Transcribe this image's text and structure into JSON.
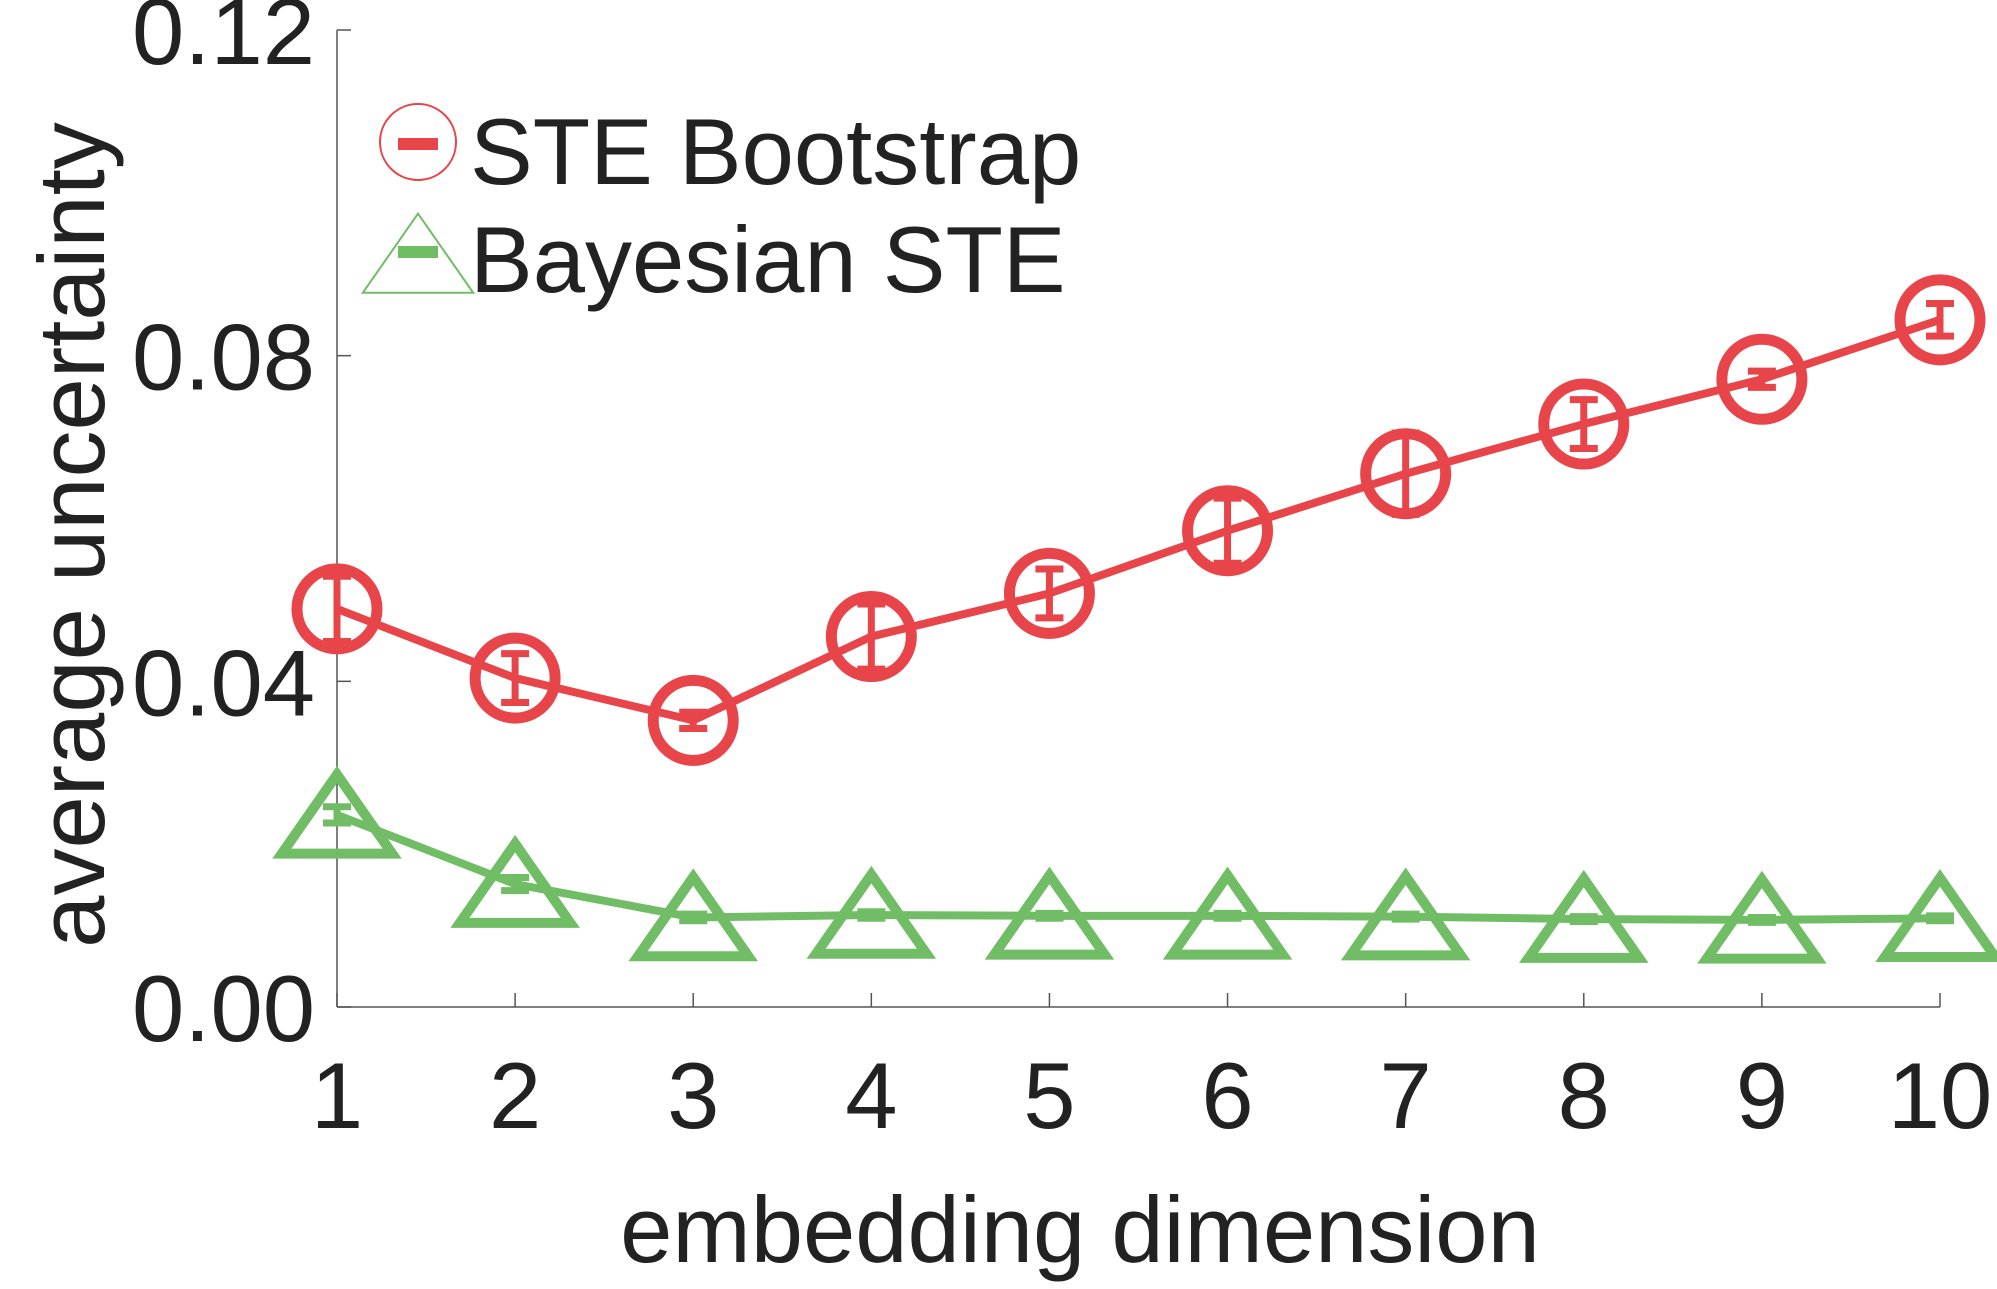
{
  "chart_data": {
    "type": "line",
    "title": "",
    "xlabel": "embedding dimension",
    "ylabel": "average uncertainty",
    "x": [
      1,
      2,
      3,
      4,
      5,
      6,
      7,
      8,
      9,
      10
    ],
    "xticks": [
      "1",
      "2",
      "3",
      "4",
      "5",
      "6",
      "7",
      "8",
      "9",
      "10"
    ],
    "xlim": [
      1,
      10
    ],
    "ylim": [
      0,
      0.12
    ],
    "yticks": [
      {
        "value": 0.0,
        "label": "0.00"
      },
      {
        "value": 0.04,
        "label": "0.04"
      },
      {
        "value": 0.08,
        "label": "0.08"
      },
      {
        "value": 0.12,
        "label": "0.12"
      }
    ],
    "grid": false,
    "legend_position": "top-left",
    "series": [
      {
        "name": "STE Bootstrap",
        "color": "#e8454a",
        "marker": "circle",
        "values": [
          0.0489,
          0.0404,
          0.0352,
          0.0455,
          0.0508,
          0.0585,
          0.0655,
          0.0716,
          0.0771,
          0.0844
        ],
        "errors": [
          0.004,
          0.003,
          0.001,
          0.004,
          0.003,
          0.004,
          0.005,
          0.003,
          0.001,
          0.002
        ]
      },
      {
        "name": "Bayesian STE",
        "color": "#70bd65",
        "marker": "triangle",
        "values": [
          0.0236,
          0.0151,
          0.011,
          0.0113,
          0.0112,
          0.0112,
          0.0111,
          0.0108,
          0.0107,
          0.0109
        ],
        "errors": [
          0.001,
          0.0008,
          0.0004,
          0.0004,
          0.0003,
          0.0003,
          0.0003,
          0.0003,
          0.0003,
          0.0003
        ]
      }
    ]
  }
}
